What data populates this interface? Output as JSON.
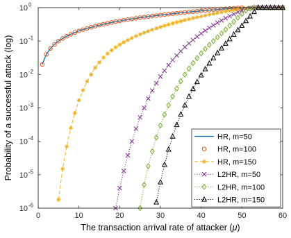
{
  "chart_data": {
    "type": "line",
    "title": "",
    "xlabel": "The transaction arrival rate of attacker (",
    "xlabel_symbol": "μ",
    "xlabel_end": ")",
    "ylabel": "Probability of a successful attack (log)",
    "xlim": [
      0,
      60
    ],
    "ylim": [
      1e-06,
      1
    ],
    "yscale": "log",
    "x_ticks": [
      "0",
      "10",
      "20",
      "30",
      "40",
      "50",
      "60"
    ],
    "y_tick_base": "10",
    "y_tick_exponents": [
      "-6",
      "-5",
      "-4",
      "-3",
      "-2",
      "-1",
      "0"
    ],
    "grid": false,
    "legend_position": "bottom-right",
    "series": [
      {
        "name": "HR, m=50",
        "color": "#0072BD",
        "line": "solid",
        "marker": "none",
        "x": [
          1,
          2,
          3,
          4,
          5,
          6,
          7,
          8,
          9,
          10,
          12,
          14,
          16,
          18,
          20,
          22,
          24,
          26,
          28,
          30,
          32,
          34,
          36,
          38,
          40,
          42,
          44,
          46,
          48,
          49,
          50,
          52,
          54,
          56,
          58,
          60
        ],
        "y": [
          0.02,
          0.04,
          0.06,
          0.08,
          0.1,
          0.12,
          0.14,
          0.16,
          0.18,
          0.2,
          0.24,
          0.28,
          0.32,
          0.36,
          0.4,
          0.44,
          0.48,
          0.52,
          0.56,
          0.6,
          0.64,
          0.68,
          0.72,
          0.76,
          0.8,
          0.84,
          0.88,
          0.92,
          0.96,
          0.98,
          1,
          1,
          1,
          1,
          1,
          1
        ]
      },
      {
        "name": "HR, m=100",
        "color": "#D95319",
        "line": "none",
        "marker": "circle",
        "x": [
          1,
          2,
          3,
          4,
          5,
          6,
          7,
          8,
          9,
          10,
          11,
          12,
          13,
          14,
          15,
          16,
          17,
          18,
          19,
          20,
          21,
          22,
          23,
          24,
          25,
          26,
          27,
          28,
          29,
          30,
          31,
          32,
          33,
          34,
          35,
          36,
          37,
          38,
          39,
          40,
          41,
          42,
          43,
          44,
          45,
          46,
          47,
          48,
          49,
          50
        ],
        "y": [
          0.02,
          0.04,
          0.06,
          0.08,
          0.1,
          0.12,
          0.14,
          0.16,
          0.18,
          0.2,
          0.22,
          0.24,
          0.26,
          0.28,
          0.3,
          0.32,
          0.34,
          0.36,
          0.38,
          0.4,
          0.42,
          0.44,
          0.46,
          0.48,
          0.5,
          0.52,
          0.54,
          0.56,
          0.58,
          0.6,
          0.62,
          0.64,
          0.66,
          0.68,
          0.7,
          0.72,
          0.74,
          0.76,
          0.78,
          0.8,
          0.82,
          0.84,
          0.86,
          0.88,
          0.9,
          0.92,
          0.94,
          0.96,
          0.98,
          1
        ]
      },
      {
        "name": "HR, m=150",
        "color": "#EDB120",
        "line": "dashed",
        "marker": "asterisk",
        "x": [
          5,
          6,
          7,
          8,
          9,
          10,
          11,
          12,
          13,
          14,
          15,
          16,
          17,
          18,
          19,
          20,
          21,
          22,
          23,
          24,
          25,
          26,
          27,
          28,
          29,
          30,
          31,
          32,
          33,
          34,
          35,
          36,
          37,
          38,
          39,
          40,
          41,
          42,
          43,
          44,
          45,
          46,
          47,
          48,
          49,
          50,
          51,
          52,
          53,
          54,
          55,
          56,
          57,
          58,
          59,
          60
        ],
        "y": [
          1.8e-06,
          1.5e-05,
          7e-05,
          0.00025,
          0.0007,
          0.0017,
          0.0034,
          0.0062,
          0.01,
          0.016,
          0.023,
          0.032,
          0.042,
          0.053,
          0.065,
          0.078,
          0.092,
          0.107,
          0.123,
          0.14,
          0.158,
          0.177,
          0.197,
          0.218,
          0.24,
          0.263,
          0.287,
          0.312,
          0.338,
          0.365,
          0.393,
          0.422,
          0.452,
          0.483,
          0.515,
          0.548,
          0.582,
          0.617,
          0.653,
          0.69,
          0.728,
          0.767,
          0.807,
          0.848,
          0.89,
          0.93,
          0.96,
          0.98,
          0.99,
          1,
          1,
          1,
          1,
          1,
          1,
          1
        ]
      },
      {
        "name": "L2HR, m=50",
        "color": "#7E2F8E",
        "line": "dotted",
        "marker": "x",
        "x": [
          19,
          20,
          21,
          22,
          23,
          24,
          25,
          26,
          27,
          28,
          29,
          30,
          31,
          32,
          33,
          34,
          35,
          36,
          37,
          38,
          39,
          40,
          41,
          42,
          43,
          44,
          45,
          46,
          47,
          48,
          49,
          50,
          51,
          52,
          53,
          54,
          55,
          56,
          57,
          58,
          59,
          60
        ],
        "y": [
          1e-06,
          4e-06,
          1.3e-05,
          3.8e-05,
          0.0001,
          0.00024,
          0.00052,
          0.001,
          0.0019,
          0.0033,
          0.0055,
          0.0087,
          0.013,
          0.019,
          0.027,
          0.037,
          0.05,
          0.066,
          0.085,
          0.108,
          0.136,
          0.168,
          0.205,
          0.248,
          0.297,
          0.352,
          0.414,
          0.483,
          0.558,
          0.64,
          0.73,
          0.83,
          0.92,
          0.97,
          1,
          1,
          1,
          1,
          1,
          1,
          1,
          1
        ]
      },
      {
        "name": "L2HR, m=100",
        "color": "#77AC30",
        "line": "dotted",
        "marker": "diamond",
        "x": [
          25,
          26,
          27,
          28,
          29,
          30,
          31,
          32,
          33,
          34,
          35,
          36,
          37,
          38,
          39,
          40,
          41,
          42,
          43,
          44,
          45,
          46,
          47,
          48,
          49,
          50,
          51,
          52,
          53,
          54,
          55,
          56,
          57,
          58,
          59,
          60
        ],
        "y": [
          1e-06,
          5e-06,
          1.8e-05,
          5e-05,
          0.00013,
          0.0003,
          0.00063,
          0.0012,
          0.0022,
          0.0038,
          0.0063,
          0.0099,
          0.015,
          0.022,
          0.031,
          0.043,
          0.058,
          0.077,
          0.1,
          0.13,
          0.17,
          0.22,
          0.29,
          0.38,
          0.5,
          0.65,
          0.82,
          0.94,
          1,
          1,
          1,
          1,
          1,
          1,
          1,
          1
        ]
      },
      {
        "name": "L2HR, m=150",
        "color": "#000000",
        "line": "dotted",
        "marker": "triangle",
        "x": [
          29,
          30,
          31,
          32,
          33,
          34,
          35,
          36,
          37,
          38,
          39,
          40,
          41,
          42,
          43,
          44,
          45,
          46,
          47,
          48,
          49,
          50,
          51,
          52,
          53,
          54,
          55,
          56,
          57,
          58,
          59,
          60
        ],
        "y": [
          1.5e-06,
          6e-06,
          2e-05,
          5.7e-05,
          0.00014,
          0.00031,
          0.00064,
          0.0012,
          0.0022,
          0.0037,
          0.006,
          0.0095,
          0.0145,
          0.0215,
          0.031,
          0.044,
          0.061,
          0.084,
          0.115,
          0.157,
          0.214,
          0.29,
          0.4,
          0.55,
          0.75,
          1,
          1,
          1,
          1,
          1,
          1,
          1
        ]
      }
    ]
  }
}
